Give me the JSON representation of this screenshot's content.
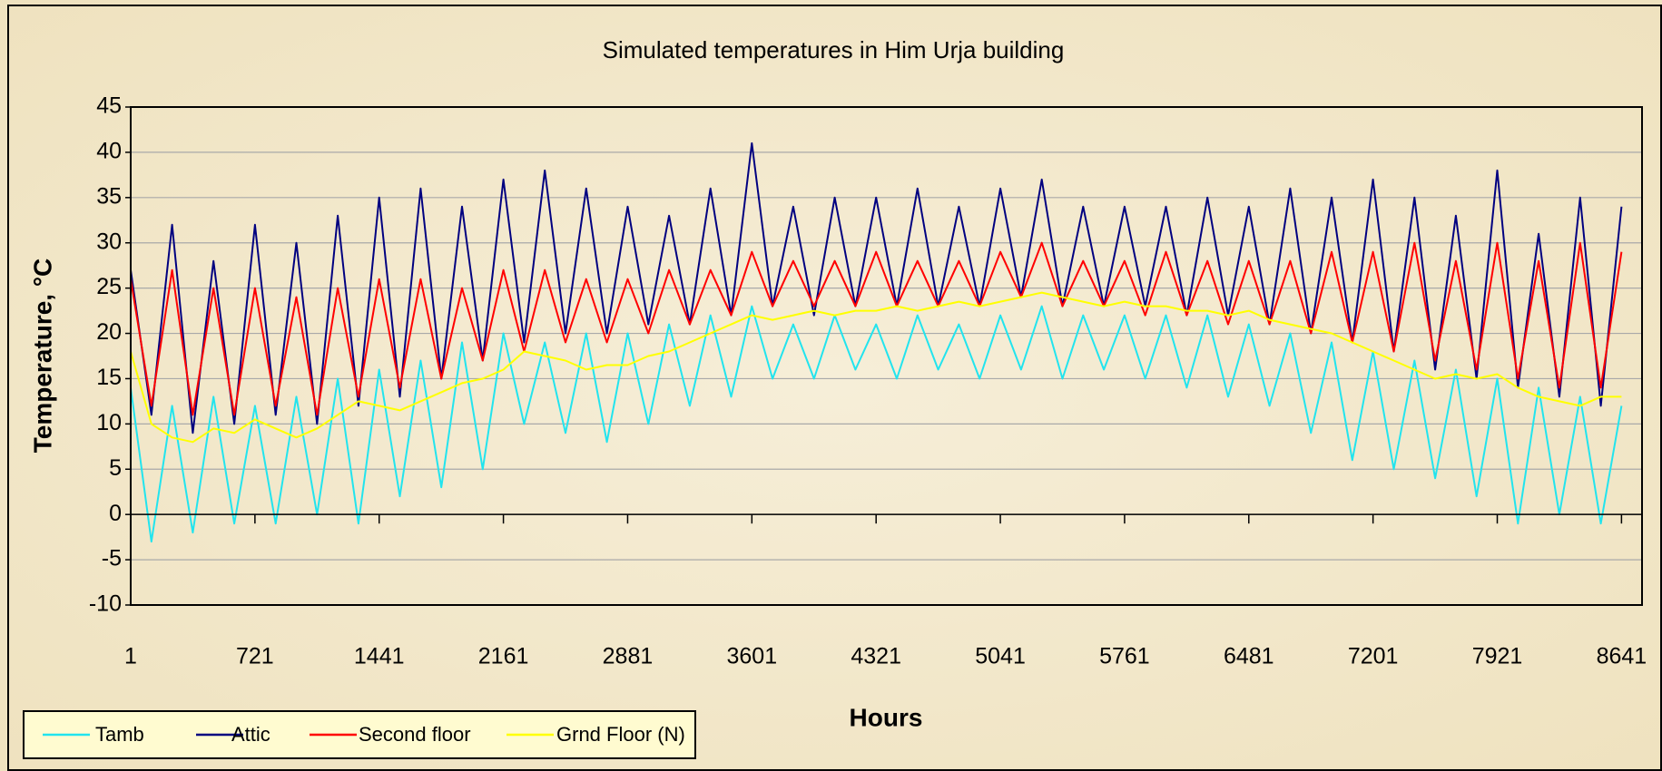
{
  "chart_data": {
    "type": "line",
    "title": "Simulated temperatures in Him Urja building",
    "y_label": "Temperature, °C",
    "x_label": "Hours",
    "xlim": [
      1,
      8760
    ],
    "xticks": [
      1,
      721,
      1441,
      2161,
      2881,
      3601,
      4321,
      5041,
      5761,
      6481,
      7201,
      7921,
      8641
    ],
    "ylim": [
      -10,
      45
    ],
    "yticks": [
      -10,
      -5,
      0,
      5,
      10,
      15,
      20,
      25,
      30,
      35,
      40,
      45
    ],
    "grid": true,
    "legend": "bottom-left",
    "x": [
      1,
      121,
      241,
      361,
      481,
      601,
      721,
      841,
      961,
      1081,
      1201,
      1321,
      1441,
      1561,
      1681,
      1801,
      1921,
      2041,
      2161,
      2281,
      2401,
      2521,
      2641,
      2761,
      2881,
      3001,
      3121,
      3241,
      3361,
      3481,
      3601,
      3721,
      3841,
      3961,
      4081,
      4201,
      4321,
      4441,
      4561,
      4681,
      4801,
      4921,
      5041,
      5161,
      5281,
      5401,
      5521,
      5641,
      5761,
      5881,
      6001,
      6121,
      6241,
      6361,
      6481,
      6601,
      6721,
      6841,
      6961,
      7081,
      7201,
      7321,
      7441,
      7561,
      7681,
      7801,
      7921,
      8041,
      8161,
      8281,
      8401,
      8521,
      8641
    ],
    "series": [
      {
        "name": "Tamb",
        "color": "#22e4ee",
        "values": [
          14,
          -3,
          12,
          -2,
          13,
          -1,
          12,
          -1,
          13,
          0,
          15,
          -1,
          16,
          2,
          17,
          3,
          19,
          5,
          20,
          10,
          19,
          9,
          20,
          8,
          20,
          10,
          21,
          12,
          22,
          13,
          23,
          15,
          21,
          15,
          22,
          16,
          21,
          15,
          22,
          16,
          21,
          15,
          22,
          16,
          23,
          15,
          22,
          16,
          22,
          15,
          22,
          14,
          22,
          13,
          21,
          12,
          20,
          9,
          19,
          6,
          18,
          5,
          17,
          4,
          16,
          2,
          15,
          -1,
          14,
          0,
          13,
          -1,
          12
        ]
      },
      {
        "name": "Attic",
        "color": "#000080",
        "values": [
          27,
          11,
          32,
          9,
          28,
          10,
          32,
          11,
          30,
          10,
          33,
          12,
          35,
          13,
          36,
          15,
          34,
          17,
          37,
          19,
          38,
          20,
          36,
          20,
          34,
          21,
          33,
          21,
          36,
          22,
          41,
          23,
          34,
          22,
          35,
          23,
          35,
          23,
          36,
          23,
          34,
          23,
          36,
          24,
          37,
          23,
          34,
          23,
          34,
          23,
          34,
          22,
          35,
          22,
          34,
          21,
          36,
          20,
          35,
          19,
          37,
          18,
          35,
          16,
          33,
          15,
          38,
          14,
          31,
          13,
          35,
          12,
          34
        ]
      },
      {
        "name": "Second floor",
        "color": "#ff0000",
        "values": [
          26,
          12,
          27,
          11,
          25,
          11,
          25,
          12,
          24,
          11,
          25,
          13,
          26,
          14,
          26,
          15,
          25,
          17,
          27,
          18,
          27,
          19,
          26,
          19,
          26,
          20,
          27,
          21,
          27,
          22,
          29,
          23,
          28,
          23,
          28,
          23,
          29,
          23,
          28,
          23,
          28,
          23,
          29,
          24,
          30,
          23,
          28,
          23,
          28,
          22,
          29,
          22,
          28,
          21,
          28,
          21,
          28,
          20,
          29,
          19,
          29,
          18,
          30,
          17,
          28,
          16,
          30,
          15,
          28,
          14,
          30,
          14,
          29
        ]
      },
      {
        "name": "Grnd Floor (N)",
        "color": "#ffff00",
        "values": [
          18,
          10,
          8.5,
          8,
          9.5,
          9,
          10.5,
          9.5,
          8.5,
          9.5,
          11,
          12.5,
          12,
          11.5,
          12.5,
          13.5,
          14.5,
          15,
          16,
          18,
          17.5,
          17,
          16,
          16.5,
          16.5,
          17.5,
          18,
          19,
          20,
          21,
          22,
          21.5,
          22,
          22.5,
          22,
          22.5,
          22.5,
          23,
          22.5,
          23,
          23.5,
          23,
          23.5,
          24,
          24.5,
          24,
          23.5,
          23,
          23.5,
          23,
          23,
          22.5,
          22.5,
          22,
          22.5,
          21.5,
          21,
          20.5,
          20,
          19,
          18,
          17,
          16,
          15,
          15.5,
          15,
          15.5,
          14,
          13,
          12.5,
          12,
          13,
          13
        ]
      }
    ]
  }
}
